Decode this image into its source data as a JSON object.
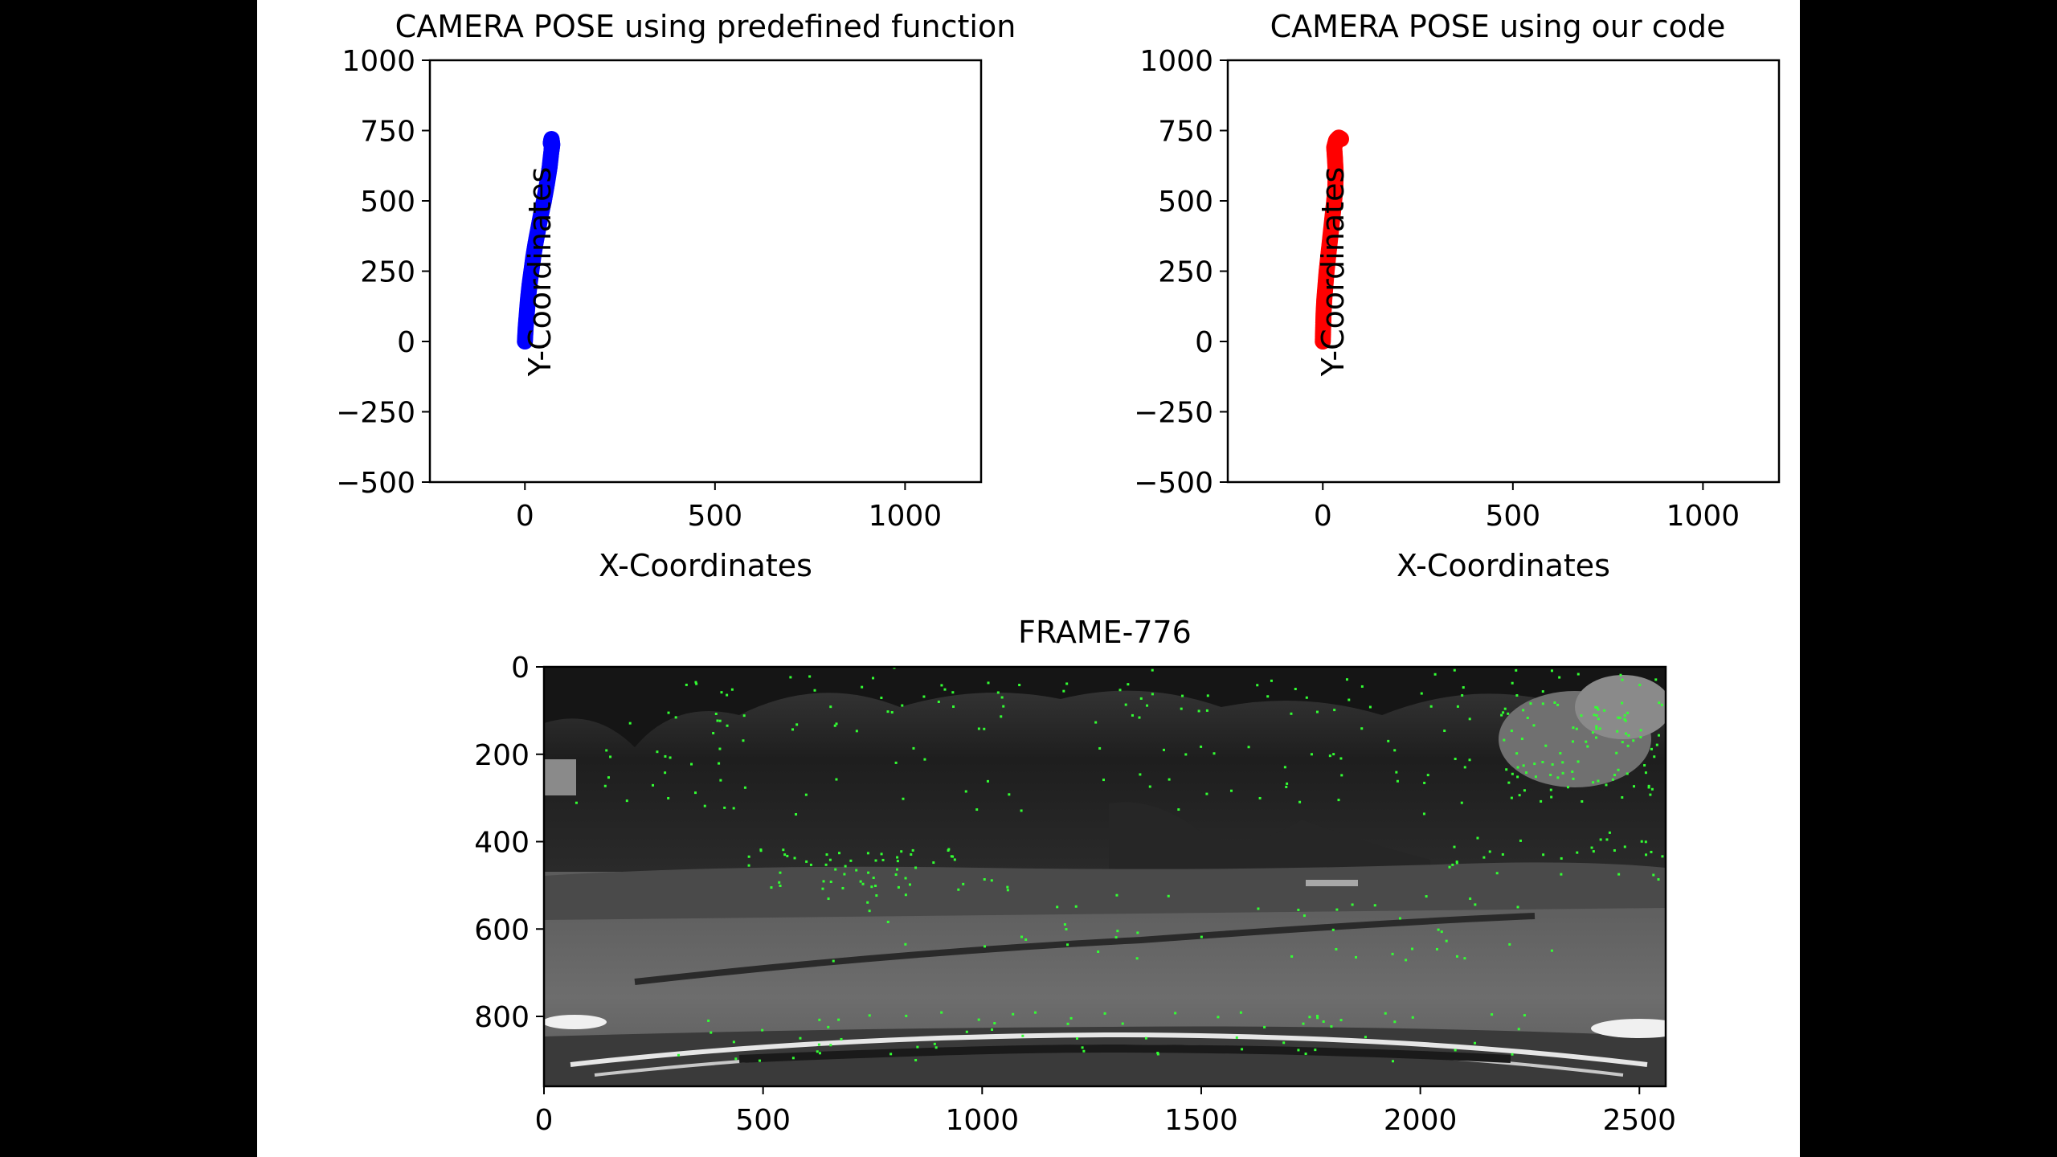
{
  "chart_data": [
    {
      "type": "scatter",
      "title": "CAMERA POSE using predefined function",
      "xlabel": "X-Coordinates",
      "ylabel": "Y-Coordinates",
      "xlim": [
        -250,
        1200
      ],
      "ylim": [
        -500,
        1000
      ],
      "xticks": [
        "0",
        "500",
        "1000"
      ],
      "yticks": [
        "1000",
        "750",
        "500",
        "250",
        "0",
        "−250",
        "−500"
      ],
      "grid": false,
      "series": [
        {
          "color": "#0000ff",
          "x": [
            0,
            2,
            5,
            8,
            12,
            17,
            22,
            28,
            35,
            42,
            50,
            58,
            65,
            70,
            72,
            70,
            68
          ],
          "y": [
            0,
            50,
            100,
            150,
            200,
            250,
            300,
            350,
            400,
            450,
            500,
            560,
            620,
            680,
            700,
            720,
            705
          ]
        }
      ]
    },
    {
      "type": "scatter",
      "title": "CAMERA POSE using our code",
      "xlabel": "X-Coordinates",
      "ylabel": "Y-Coordinates",
      "xlim": [
        -250,
        1200
      ],
      "ylim": [
        -500,
        1000
      ],
      "xticks": [
        "0",
        "500",
        "1000"
      ],
      "yticks": [
        "1000",
        "750",
        "500",
        "250",
        "0",
        "−250",
        "−500"
      ],
      "grid": false,
      "series": [
        {
          "color": "#ff0000",
          "x": [
            0,
            1,
            2,
            4,
            7,
            10,
            14,
            18,
            22,
            26,
            30,
            33,
            34,
            32,
            30,
            35,
            42,
            48
          ],
          "y": [
            0,
            50,
            100,
            150,
            200,
            250,
            300,
            350,
            400,
            450,
            500,
            550,
            600,
            650,
            690,
            715,
            725,
            720
          ]
        }
      ]
    },
    {
      "type": "image",
      "title": "FRAME-776",
      "xlim": [
        0,
        2560
      ],
      "ylim": [
        960,
        0
      ],
      "xticks": [
        "0",
        "500",
        "1000",
        "1500",
        "2000",
        "2500"
      ],
      "yticks": [
        "0",
        "200",
        "400",
        "600",
        "800"
      ],
      "feature_color": "#33ff33"
    }
  ]
}
